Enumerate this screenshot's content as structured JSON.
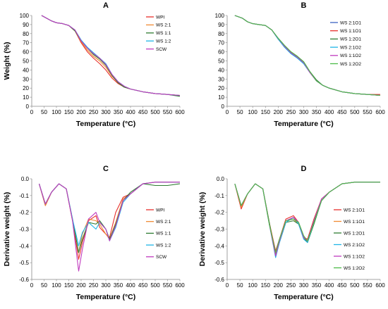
{
  "chart_data": [
    {
      "type": "line",
      "title": "A",
      "xlabel": "Temperature (°C)",
      "ylabel": "Weight (%)",
      "xlim": [
        0,
        600
      ],
      "ylim": [
        0,
        100
      ],
      "xticks": [
        "0",
        "50",
        "100",
        "150",
        "200",
        "250",
        "300",
        "350",
        "400",
        "450",
        "500",
        "550",
        "600"
      ],
      "yticks": [
        "0",
        "10",
        "20",
        "30",
        "40",
        "50",
        "60",
        "70",
        "80",
        "90",
        "100"
      ],
      "grid": false,
      "legend": "top-right",
      "x": [
        40,
        60,
        80,
        100,
        125,
        150,
        175,
        200,
        225,
        250,
        275,
        300,
        325,
        350,
        375,
        400,
        450,
        500,
        550,
        600
      ],
      "series": [
        {
          "name": "WPI",
          "color": "#e8302c",
          "values": [
            100,
            97,
            94,
            92,
            91,
            89,
            83,
            70,
            60,
            53,
            47,
            40,
            31,
            25,
            21,
            19,
            16,
            14,
            13,
            12
          ]
        },
        {
          "name": "WS 2:1",
          "color": "#f08a33",
          "values": [
            100,
            97,
            94,
            92,
            91,
            89,
            83,
            71,
            62,
            55,
            50,
            43,
            33,
            26,
            21,
            19,
            16,
            14,
            13,
            12
          ]
        },
        {
          "name": "WS 1:1",
          "color": "#2e7d32",
          "values": [
            100,
            97,
            94,
            92,
            91,
            89,
            83,
            72,
            64,
            57,
            52,
            45,
            34,
            26,
            21,
            19,
            16,
            14,
            13,
            11
          ]
        },
        {
          "name": "WS 1:2",
          "color": "#1fb5e6",
          "values": [
            100,
            97,
            94,
            92,
            91,
            89,
            84,
            73,
            65,
            59,
            53,
            47,
            35,
            27,
            22,
            19,
            16,
            14,
            13,
            12
          ]
        },
        {
          "name": "SCW",
          "color": "#c03bbf",
          "values": [
            100,
            97,
            94,
            92,
            91,
            89,
            84,
            72,
            64,
            58,
            53,
            46,
            35,
            27,
            22,
            19,
            16,
            14,
            13,
            12
          ]
        }
      ]
    },
    {
      "type": "line",
      "title": "B",
      "xlabel": "Temperature (°C)",
      "ylabel": "",
      "xlim": [
        0,
        600
      ],
      "ylim": [
        0,
        100
      ],
      "xticks": [
        "0",
        "50",
        "100",
        "150",
        "200",
        "250",
        "300",
        "350",
        "400",
        "450",
        "500",
        "550",
        "600"
      ],
      "yticks": [
        "0",
        "10",
        "20",
        "30",
        "40",
        "50",
        "60",
        "70",
        "80",
        "90",
        "100"
      ],
      "grid": false,
      "legend": "top-right",
      "x": [
        30,
        60,
        80,
        100,
        125,
        150,
        175,
        200,
        225,
        250,
        275,
        300,
        325,
        350,
        375,
        400,
        450,
        500,
        550,
        600
      ],
      "series": [
        {
          "name": "WS 2:1O1",
          "color": "#3b63c4",
          "values": [
            100,
            97,
            93,
            91,
            90,
            89,
            84,
            74,
            65,
            58,
            53,
            47,
            37,
            28,
            23,
            20,
            16,
            14,
            13,
            12
          ]
        },
        {
          "name": "WS 1:1O1",
          "color": "#e8302c",
          "values": [
            100,
            97,
            93,
            91,
            90,
            89,
            84,
            74,
            66,
            59,
            54,
            48,
            37,
            28,
            23,
            20,
            16,
            14,
            13,
            13
          ]
        },
        {
          "name": "WS 1:2O1",
          "color": "#2e7d32",
          "values": [
            100,
            97,
            93,
            91,
            90,
            89,
            84,
            75,
            67,
            60,
            55,
            49,
            38,
            29,
            23,
            20,
            16,
            14,
            13,
            12
          ]
        },
        {
          "name": "WS 2:1O2",
          "color": "#1fb5e6",
          "values": [
            100,
            97,
            93,
            91,
            90,
            89,
            84,
            74,
            65,
            58,
            53,
            47,
            37,
            28,
            23,
            20,
            16,
            14,
            13,
            12
          ]
        },
        {
          "name": "WS 1:1O2",
          "color": "#c03bbf",
          "values": [
            100,
            97,
            93,
            91,
            90,
            89,
            84,
            75,
            66,
            59,
            54,
            48,
            37,
            28,
            23,
            20,
            16,
            14,
            13,
            12
          ]
        },
        {
          "name": "WS 1:2O2",
          "color": "#4cbb47",
          "values": [
            100,
            97,
            93,
            91,
            90,
            89,
            84,
            75,
            67,
            60,
            55,
            49,
            38,
            28,
            23,
            20,
            16,
            14,
            13,
            12
          ]
        }
      ]
    },
    {
      "type": "line",
      "title": "C",
      "xlabel": "Temperature (°C)",
      "ylabel": "Derivative weight (%)",
      "xlim": [
        0,
        600
      ],
      "ylim": [
        -0.6,
        0
      ],
      "xticks": [
        "0",
        "50",
        "100",
        "150",
        "200",
        "250",
        "300",
        "350",
        "400",
        "450",
        "500",
        "550",
        "600"
      ],
      "yticks": [
        "-0.6",
        "-0.5",
        "-0.4",
        "-0.3",
        "-0.2",
        "-0.1",
        "0.0"
      ],
      "grid": false,
      "legend": "right",
      "x": [
        30,
        55,
        80,
        110,
        140,
        165,
        190,
        205,
        230,
        260,
        275,
        300,
        315,
        340,
        370,
        400,
        450,
        500,
        550,
        600
      ],
      "series": [
        {
          "name": "WPI",
          "color": "#e8302c",
          "values": [
            -0.03,
            -0.16,
            -0.08,
            -0.03,
            -0.06,
            -0.25,
            -0.48,
            -0.38,
            -0.25,
            -0.22,
            -0.29,
            -0.33,
            -0.35,
            -0.2,
            -0.11,
            -0.09,
            -0.03,
            -0.02,
            -0.02,
            -0.02
          ]
        },
        {
          "name": "WS 2:1",
          "color": "#f08a33",
          "values": [
            -0.03,
            -0.16,
            -0.08,
            -0.03,
            -0.06,
            -0.25,
            -0.44,
            -0.33,
            -0.24,
            -0.25,
            -0.27,
            -0.33,
            -0.36,
            -0.26,
            -0.12,
            -0.09,
            -0.03,
            -0.02,
            -0.02,
            -0.02
          ]
        },
        {
          "name": "WS 1:1",
          "color": "#2e7d32",
          "values": [
            -0.03,
            -0.15,
            -0.08,
            -0.03,
            -0.06,
            -0.24,
            -0.44,
            -0.36,
            -0.26,
            -0.27,
            -0.25,
            -0.3,
            -0.36,
            -0.27,
            -0.13,
            -0.08,
            -0.03,
            -0.04,
            -0.04,
            -0.03
          ]
        },
        {
          "name": "WS 1:2",
          "color": "#1fb5e6",
          "values": [
            -0.03,
            -0.15,
            -0.08,
            -0.03,
            -0.06,
            -0.24,
            -0.4,
            -0.32,
            -0.26,
            -0.3,
            -0.26,
            -0.3,
            -0.37,
            -0.29,
            -0.14,
            -0.09,
            -0.03,
            -0.02,
            -0.02,
            -0.02
          ]
        },
        {
          "name": "SCW",
          "color": "#c03bbf",
          "values": [
            -0.03,
            -0.15,
            -0.08,
            -0.03,
            -0.06,
            -0.25,
            -0.55,
            -0.42,
            -0.24,
            -0.2,
            -0.26,
            -0.3,
            -0.37,
            -0.28,
            -0.13,
            -0.09,
            -0.03,
            -0.02,
            -0.02,
            -0.02
          ]
        }
      ]
    },
    {
      "type": "line",
      "title": "D",
      "xlabel": "Temperature (°C)",
      "ylabel": "Derivative weight (%)",
      "xlim": [
        0,
        600
      ],
      "ylim": [
        -0.6,
        0
      ],
      "xticks": [
        "0",
        "50",
        "100",
        "150",
        "200",
        "250",
        "300",
        "350",
        "400",
        "450",
        "500",
        "550",
        "600"
      ],
      "yticks": [
        "-0.6",
        "-0.5",
        "-0.4",
        "-0.3",
        "-0.2",
        "-0.1",
        "0.0"
      ],
      "grid": false,
      "legend": "right",
      "x": [
        30,
        55,
        80,
        110,
        140,
        165,
        190,
        205,
        230,
        260,
        280,
        300,
        315,
        340,
        370,
        400,
        450,
        500,
        550,
        600
      ],
      "series": [
        {
          "name": "WS 2:1O1",
          "color": "#e8302c",
          "values": [
            -0.03,
            -0.18,
            -0.09,
            -0.03,
            -0.06,
            -0.26,
            -0.43,
            -0.36,
            -0.24,
            -0.22,
            -0.26,
            -0.35,
            -0.36,
            -0.24,
            -0.12,
            -0.08,
            -0.03,
            -0.02,
            -0.02,
            -0.02
          ]
        },
        {
          "name": "WS 1:1O1",
          "color": "#f08a33",
          "values": [
            -0.03,
            -0.17,
            -0.09,
            -0.03,
            -0.06,
            -0.26,
            -0.45,
            -0.37,
            -0.25,
            -0.24,
            -0.27,
            -0.35,
            -0.38,
            -0.26,
            -0.13,
            -0.08,
            -0.03,
            -0.02,
            -0.02,
            -0.02
          ]
        },
        {
          "name": "WS 1:2O1",
          "color": "#2e7d32",
          "values": [
            -0.03,
            -0.16,
            -0.09,
            -0.03,
            -0.06,
            -0.26,
            -0.46,
            -0.38,
            -0.26,
            -0.25,
            -0.27,
            -0.35,
            -0.38,
            -0.27,
            -0.13,
            -0.08,
            -0.03,
            -0.02,
            -0.02,
            -0.02
          ]
        },
        {
          "name": "WS 2:1O2",
          "color": "#1fb5e6",
          "values": [
            -0.03,
            -0.16,
            -0.09,
            -0.03,
            -0.06,
            -0.27,
            -0.47,
            -0.38,
            -0.26,
            -0.23,
            -0.27,
            -0.36,
            -0.38,
            -0.26,
            -0.13,
            -0.08,
            -0.03,
            -0.02,
            -0.02,
            -0.02
          ]
        },
        {
          "name": "WS 1:1O2",
          "color": "#c03bbf",
          "values": [
            -0.03,
            -0.16,
            -0.09,
            -0.03,
            -0.06,
            -0.27,
            -0.46,
            -0.37,
            -0.25,
            -0.23,
            -0.26,
            -0.35,
            -0.37,
            -0.25,
            -0.12,
            -0.08,
            -0.03,
            -0.02,
            -0.02,
            -0.02
          ]
        },
        {
          "name": "WS 1:2O2",
          "color": "#4cbb47",
          "values": [
            -0.03,
            -0.16,
            -0.09,
            -0.03,
            -0.06,
            -0.27,
            -0.44,
            -0.36,
            -0.25,
            -0.24,
            -0.26,
            -0.34,
            -0.37,
            -0.26,
            -0.13,
            -0.08,
            -0.03,
            -0.02,
            -0.02,
            -0.02
          ]
        }
      ]
    }
  ]
}
